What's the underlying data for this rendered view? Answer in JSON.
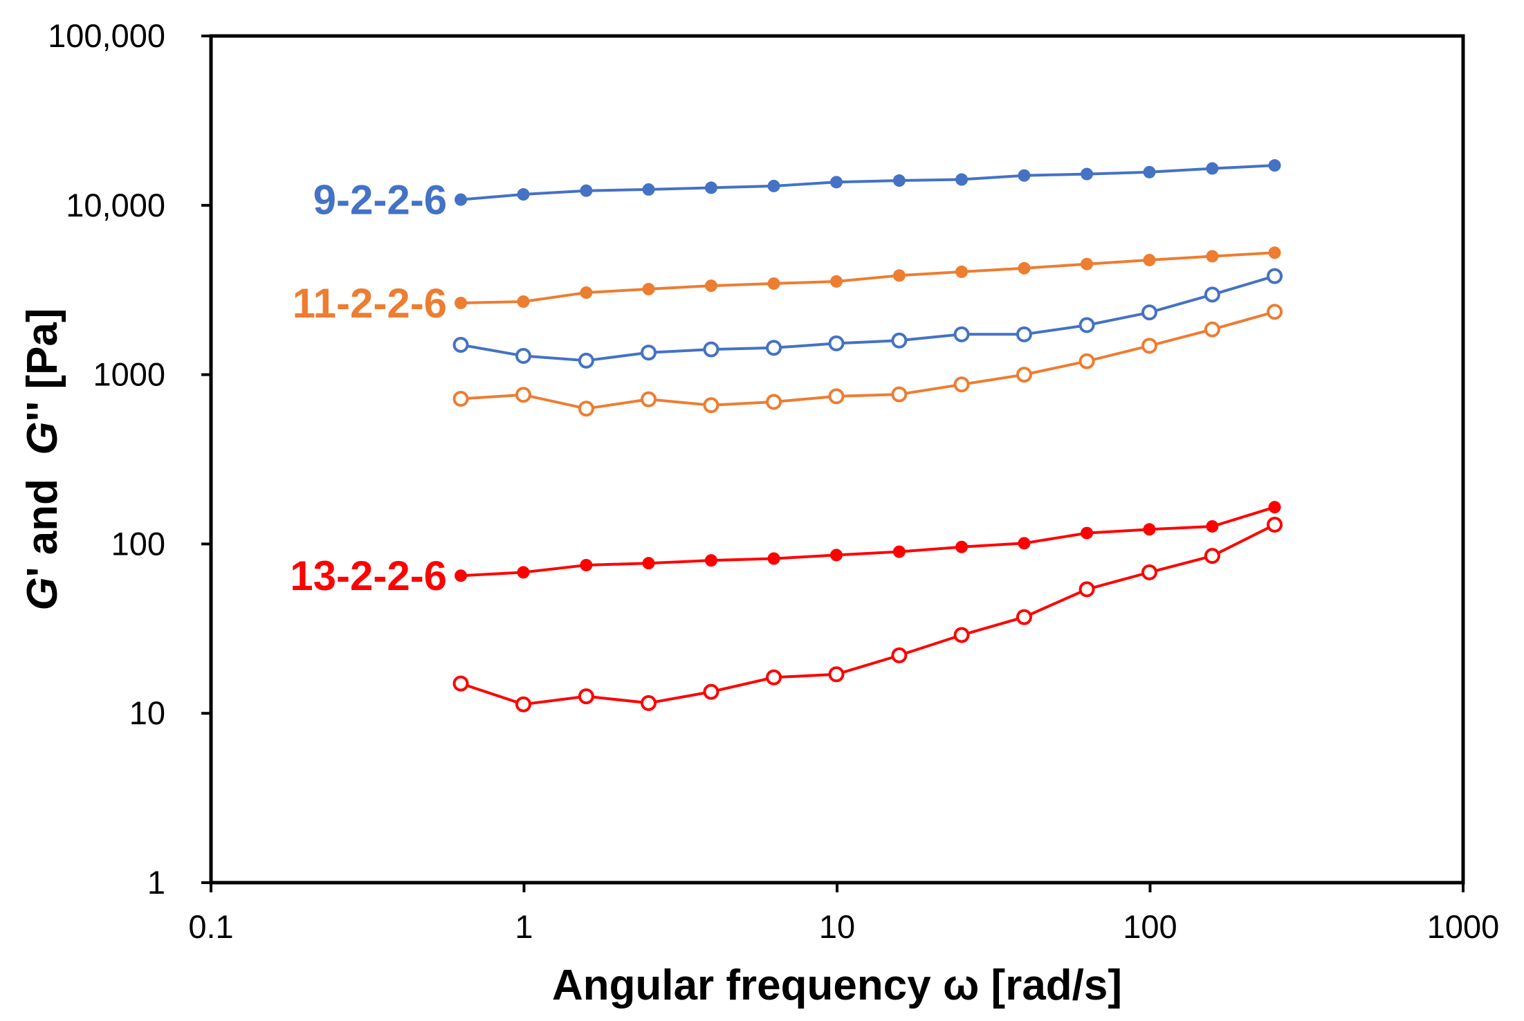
{
  "chart_data": {
    "type": "scatter",
    "xscale": "log",
    "yscale": "log",
    "xlim": [
      0.1,
      1000
    ],
    "ylim": [
      1,
      100000
    ],
    "grid": false,
    "xticks": [
      0.1,
      1,
      10,
      100,
      1000
    ],
    "xtick_labels": [
      "0.1",
      "1",
      "10",
      "100",
      "1000"
    ],
    "yticks": [
      1,
      10,
      100,
      1000,
      10000,
      100000
    ],
    "ytick_labels": [
      "1",
      "10",
      "100",
      "1000",
      "10,000",
      "100,000"
    ],
    "xlabel": "Angular frequency ω [rad/s]",
    "ylabel_parts": [
      {
        "text": "G",
        "italic": true
      },
      {
        "text": "' and  ",
        "italic": false
      },
      {
        "text": "G",
        "italic": true
      },
      {
        "text": "'' [Pa]",
        "italic": false
      }
    ],
    "x": [
      0.628,
      0.995,
      1.58,
      2.5,
      3.96,
      6.28,
      9.95,
      15.8,
      25,
      39.6,
      62.8,
      99.5,
      158,
      250
    ],
    "series": [
      {
        "group": "9-2-2-6",
        "kind": "G'",
        "marker": "filled",
        "color": "#4472C4",
        "values": [
          10800,
          11600,
          12200,
          12400,
          12700,
          13000,
          13700,
          14000,
          14200,
          15000,
          15300,
          15700,
          16500,
          17200
        ]
      },
      {
        "group": "9-2-2-6",
        "kind": "G''",
        "marker": "open",
        "color": "#4472C4",
        "values": [
          1500,
          1290,
          1210,
          1350,
          1410,
          1440,
          1530,
          1590,
          1730,
          1730,
          1960,
          2330,
          2970,
          3820
        ]
      },
      {
        "group": "11-2-2-6",
        "kind": "G'",
        "marker": "filled",
        "color": "#ED7D31",
        "values": [
          2650,
          2700,
          3050,
          3200,
          3350,
          3450,
          3550,
          3850,
          4050,
          4250,
          4500,
          4750,
          5000,
          5250
        ]
      },
      {
        "group": "11-2-2-6",
        "kind": "G''",
        "marker": "open",
        "color": "#ED7D31",
        "values": [
          720,
          760,
          630,
          715,
          660,
          690,
          745,
          765,
          875,
          1000,
          1200,
          1480,
          1850,
          2350
        ]
      },
      {
        "group": "13-2-2-6",
        "kind": "G'",
        "marker": "filled",
        "color": "#FF0000",
        "values": [
          65,
          68,
          75,
          77,
          80,
          82,
          86,
          90,
          96,
          101,
          116,
          122,
          127,
          165
        ]
      },
      {
        "group": "13-2-2-6",
        "kind": "G''",
        "marker": "open",
        "color": "#FF0000",
        "values": [
          15,
          11.3,
          12.6,
          11.5,
          13.4,
          16.3,
          17,
          22,
          29,
          37,
          54,
          68,
          85,
          130
        ]
      }
    ],
    "series_labels": [
      {
        "text": "9-2-2-6",
        "color": "#4472C4",
        "anchor_series": 0
      },
      {
        "text": "11-2-2-6",
        "color": "#ED7D31",
        "anchor_series": 2
      },
      {
        "text": "13-2-2-6",
        "color": "#FF0000",
        "anchor_series": 4
      }
    ]
  }
}
